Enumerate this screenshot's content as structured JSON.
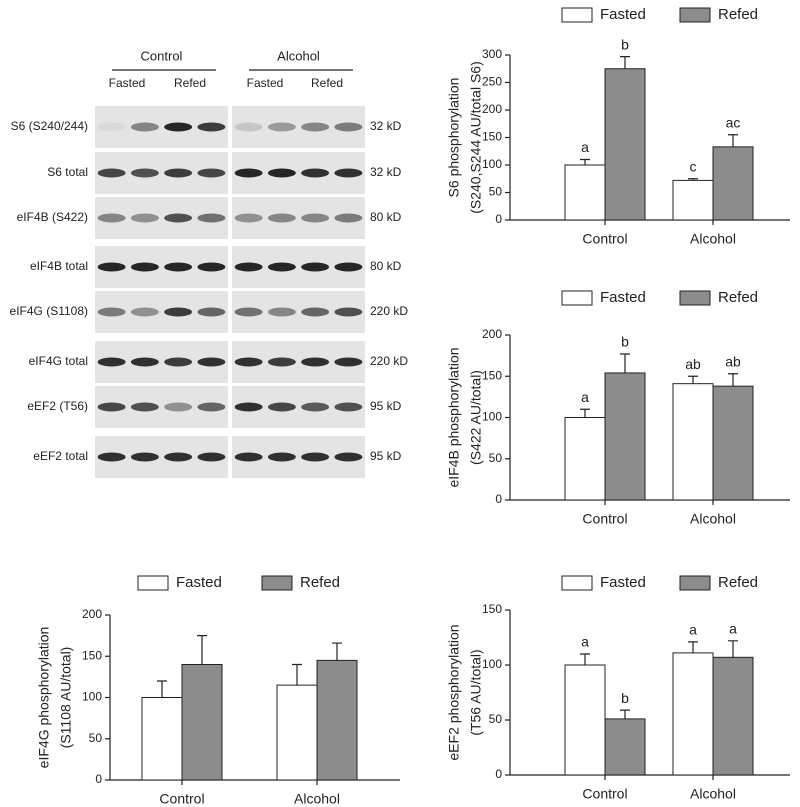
{
  "blot": {
    "groups": [
      "Control",
      "Alcohol"
    ],
    "lanes": [
      "Fasted",
      "Refed",
      "Fasted",
      "Refed"
    ],
    "rows": [
      {
        "label": "S6 (S240/244)",
        "size": "32 kD"
      },
      {
        "label": "S6 total",
        "size": "32 kD"
      },
      {
        "label": "eIF4B (S422)",
        "size": "80 kD"
      },
      {
        "label": "eIF4B total",
        "size": "80 kD"
      },
      {
        "label": "eIF4G (S1108)",
        "size": "220 kD"
      },
      {
        "label": "eIF4G total",
        "size": "220 kD"
      },
      {
        "label": "eEF2 (T56)",
        "size": "95 kD"
      },
      {
        "label": "eEF2 total",
        "size": "95 kD"
      }
    ]
  },
  "chart_data": [
    {
      "type": "bar",
      "ylabel": [
        "S6 phosphorylation",
        "(S240,S244 AU/total S6)"
      ],
      "categories": [
        "Control",
        "Alcohol"
      ],
      "series": [
        {
          "name": "Fasted",
          "color": "#ffffff",
          "values": [
            100,
            72
          ],
          "errors": [
            10,
            3
          ],
          "letters": [
            "a",
            "c"
          ]
        },
        {
          "name": "Refed",
          "color": "#8c8c8c",
          "values": [
            275,
            133
          ],
          "errors": [
            22,
            22
          ],
          "letters": [
            "b",
            "ac"
          ]
        }
      ],
      "ylim": [
        0,
        300
      ],
      "yticks": [
        0,
        50,
        100,
        150,
        200,
        250,
        300
      ]
    },
    {
      "type": "bar",
      "ylabel": [
        "eIF4B phosphorylation",
        "(S422 AU/total)"
      ],
      "categories": [
        "Control",
        "Alcohol"
      ],
      "series": [
        {
          "name": "Fasted",
          "color": "#ffffff",
          "values": [
            100,
            141
          ],
          "errors": [
            10,
            9
          ],
          "letters": [
            "a",
            "ab"
          ]
        },
        {
          "name": "Refed",
          "color": "#8c8c8c",
          "values": [
            154,
            138
          ],
          "errors": [
            23,
            15
          ],
          "letters": [
            "b",
            "ab"
          ]
        }
      ],
      "ylim": [
        0,
        200
      ],
      "yticks": [
        0,
        50,
        100,
        150,
        200
      ]
    },
    {
      "type": "bar",
      "ylabel": [
        "eIF4G phosphorylation",
        "(S1108 AU/total)"
      ],
      "categories": [
        "Control",
        "Alcohol"
      ],
      "series": [
        {
          "name": "Fasted",
          "color": "#ffffff",
          "values": [
            100,
            115
          ],
          "errors": [
            20,
            25
          ]
        },
        {
          "name": "Refed",
          "color": "#8c8c8c",
          "values": [
            140,
            145
          ],
          "errors": [
            35,
            21
          ]
        }
      ],
      "ylim": [
        0,
        200
      ],
      "yticks": [
        0,
        50,
        100,
        150,
        200
      ]
    },
    {
      "type": "bar",
      "ylabel": [
        "eEF2 phosphorylation",
        "(T56 AU/total)"
      ],
      "categories": [
        "Control",
        "Alcohol"
      ],
      "series": [
        {
          "name": "Fasted",
          "color": "#ffffff",
          "values": [
            100,
            111
          ],
          "errors": [
            10,
            10
          ],
          "letters": [
            "a",
            "a"
          ]
        },
        {
          "name": "Refed",
          "color": "#8c8c8c",
          "values": [
            51,
            107
          ],
          "errors": [
            8,
            15
          ],
          "letters": [
            "b",
            "a"
          ]
        }
      ],
      "ylim": [
        0,
        150
      ],
      "yticks": [
        0,
        50,
        100,
        150
      ]
    }
  ]
}
